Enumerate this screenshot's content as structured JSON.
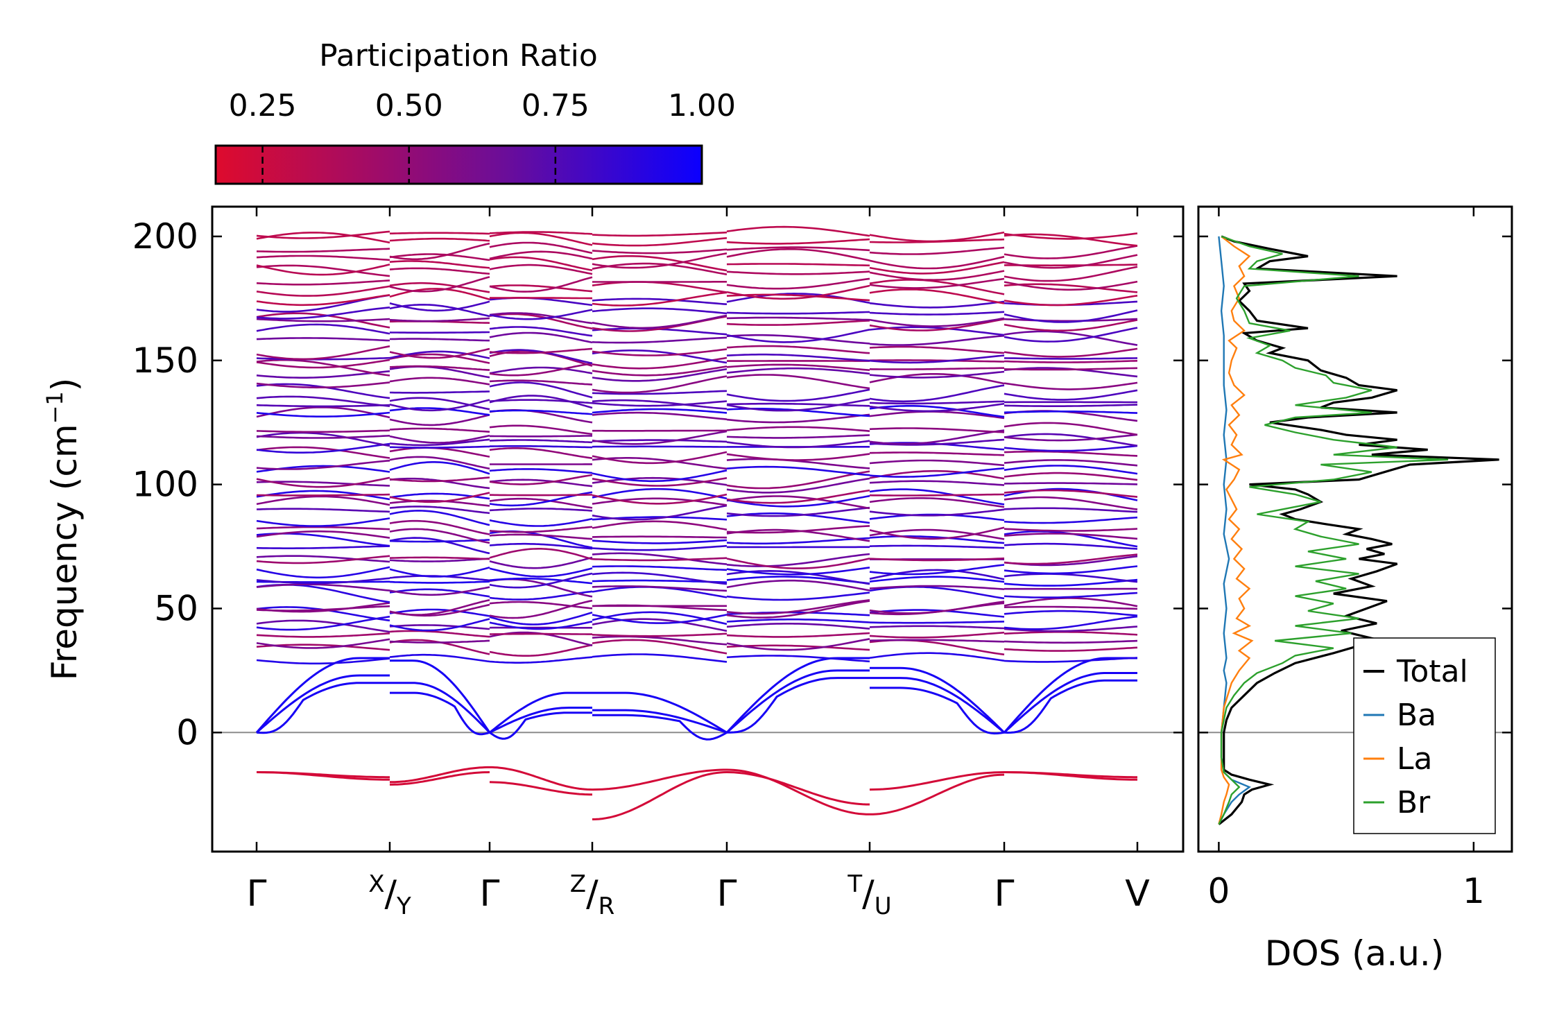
{
  "chart_data": [
    {
      "type": "line",
      "subtype": "phonon-band-structure",
      "ylabel_main": "Frequency (cm",
      "ylabel_sup": "−1",
      "ylabel_close": ")",
      "ylim": [
        -48,
        212
      ],
      "yticks": [
        0,
        50,
        100,
        150,
        200
      ],
      "x_segments": [
        {
          "from": "Γ",
          "to": "X",
          "length": 1.0
        },
        {
          "from": "Y",
          "to": "Γ",
          "length": 0.75
        },
        {
          "from": "Γ",
          "to": "Z",
          "length": 0.77
        },
        {
          "from": "R",
          "to": "Γ",
          "length": 1.0
        },
        {
          "from": "Γ",
          "to": "T",
          "length": 1.07
        },
        {
          "from": "U",
          "to": "Γ",
          "length": 1.02
        },
        {
          "from": "Γ",
          "to": "V",
          "length": 1.0
        }
      ],
      "xticks": [
        {
          "main": "Γ"
        },
        {
          "sup": "X",
          "slash": "/",
          "sub": "Y"
        },
        {
          "main": "Γ"
        },
        {
          "sup": "Z",
          "slash": "/",
          "sub": "R"
        },
        {
          "main": "Γ"
        },
        {
          "sup": "T",
          "slash": "/",
          "sub": "U"
        },
        {
          "main": "Γ"
        },
        {
          "main": "V"
        }
      ],
      "imaginary_branches": [
        {
          "segment_start": [
            -16,
            -21,
            -20,
            -35,
            -16,
            -23,
            -16
          ],
          "segment_end": [
            -19,
            -16,
            -25,
            -16,
            -29,
            -16,
            -19
          ]
        },
        {
          "segment_start": [
            -16,
            -20,
            -14,
            -23,
            -15,
            -33,
            -16
          ],
          "segment_end": [
            -18,
            -14,
            -23,
            -15,
            -33,
            -17,
            -18
          ]
        }
      ],
      "acoustic_branches": "three acoustic branches rising from 0 at each Γ point, reaching roughly 16–30 cm⁻¹ at zone boundaries; some soft dips to about -5 cm⁻¹ near Γ",
      "optical_band_region": {
        "from": 31,
        "to": 200,
        "approx_branch_count": 60
      },
      "zero_line": 0,
      "colorbar": {
        "label": "Participation Ratio",
        "ticks": [
          "0.25",
          "0.50",
          "0.75",
          "1.00"
        ],
        "range": [
          0.17,
          1.0
        ],
        "low_color": "#de0b2d",
        "high_color": "#0b00ff"
      }
    },
    {
      "type": "line",
      "subtype": "density-of-states",
      "xlabel": "DOS (a.u.)",
      "xticks": [
        "0",
        "1"
      ],
      "xlim": [
        -0.08,
        1.15
      ],
      "ylim": [
        -48,
        212
      ],
      "legend_position": "bottom-right",
      "series": [
        {
          "name": "Total",
          "color": "#000000",
          "points": [
            [
              -37,
              0
            ],
            [
              -33,
              0.05
            ],
            [
              -28,
              0.09
            ],
            [
              -25,
              0.1
            ],
            [
              -23,
              0.13
            ],
            [
              -21,
              0.2
            ],
            [
              -19,
              0.12
            ],
            [
              -17,
              0.05
            ],
            [
              -15,
              0.02
            ],
            [
              -10,
              0.02
            ],
            [
              -5,
              0.02
            ],
            [
              0,
              0.02
            ],
            [
              5,
              0.03
            ],
            [
              10,
              0.05
            ],
            [
              15,
              0.1
            ],
            [
              20,
              0.15
            ],
            [
              24,
              0.22
            ],
            [
              28,
              0.3
            ],
            [
              32,
              0.45
            ],
            [
              35,
              0.55
            ],
            [
              38,
              0.6
            ],
            [
              41,
              0.48
            ],
            [
              44,
              0.62
            ],
            [
              47,
              0.5
            ],
            [
              50,
              0.58
            ],
            [
              53,
              0.66
            ],
            [
              56,
              0.45
            ],
            [
              59,
              0.6
            ],
            [
              62,
              0.52
            ],
            [
              65,
              0.62
            ],
            [
              68,
              0.7
            ],
            [
              70,
              0.55
            ],
            [
              72,
              0.65
            ],
            [
              74,
              0.58
            ],
            [
              76,
              0.68
            ],
            [
              78,
              0.6
            ],
            [
              80,
              0.5
            ],
            [
              82,
              0.55
            ],
            [
              84,
              0.42
            ],
            [
              86,
              0.3
            ],
            [
              88,
              0.25
            ],
            [
              90,
              0.32
            ],
            [
              93,
              0.4
            ],
            [
              96,
              0.35
            ],
            [
              98,
              0.3
            ],
            [
              100,
              0.12
            ],
            [
              102,
              0.55
            ],
            [
              105,
              0.65
            ],
            [
              108,
              0.75
            ],
            [
              110,
              1.1
            ],
            [
              112,
              0.6
            ],
            [
              114,
              0.82
            ],
            [
              116,
              0.55
            ],
            [
              118,
              0.7
            ],
            [
              120,
              0.5
            ],
            [
              122,
              0.4
            ],
            [
              125,
              0.2
            ],
            [
              127,
              0.35
            ],
            [
              129,
              0.7
            ],
            [
              131,
              0.4
            ],
            [
              133,
              0.45
            ],
            [
              135,
              0.6
            ],
            [
              138,
              0.7
            ],
            [
              140,
              0.55
            ],
            [
              143,
              0.5
            ],
            [
              146,
              0.4
            ],
            [
              150,
              0.35
            ],
            [
              153,
              0.2
            ],
            [
              155,
              0.25
            ],
            [
              158,
              0.15
            ],
            [
              161,
              0.1
            ],
            [
              163,
              0.35
            ],
            [
              166,
              0.15
            ],
            [
              170,
              0.12
            ],
            [
              174,
              0.08
            ],
            [
              178,
              0.12
            ],
            [
              181,
              0.1
            ],
            [
              184,
              0.7
            ],
            [
              187,
              0.15
            ],
            [
              190,
              0.2
            ],
            [
              192,
              0.35
            ],
            [
              195,
              0.2
            ],
            [
              198,
              0.06
            ],
            [
              200,
              0.01
            ]
          ]
        },
        {
          "name": "Ba",
          "color": "#1f77b4",
          "points": [
            [
              -37,
              0
            ],
            [
              -33,
              0.02
            ],
            [
              -28,
              0.05
            ],
            [
              -25,
              0.08
            ],
            [
              -22,
              0.12
            ],
            [
              -19,
              0.05
            ],
            [
              -16,
              0.02
            ],
            [
              -10,
              0.01
            ],
            [
              0,
              0.01
            ],
            [
              10,
              0.02
            ],
            [
              20,
              0.03
            ],
            [
              25,
              0.02
            ],
            [
              30,
              0.03
            ],
            [
              40,
              0.02
            ],
            [
              50,
              0.03
            ],
            [
              60,
              0.02
            ],
            [
              70,
              0.04
            ],
            [
              80,
              0.02
            ],
            [
              90,
              0.03
            ],
            [
              100,
              0.02
            ],
            [
              110,
              0.03
            ],
            [
              120,
              0.02
            ],
            [
              130,
              0.03
            ],
            [
              140,
              0.02
            ],
            [
              150,
              0.02
            ],
            [
              160,
              0.02
            ],
            [
              170,
              0.01
            ],
            [
              180,
              0.02
            ],
            [
              190,
              0.01
            ],
            [
              200,
              0.0
            ]
          ]
        },
        {
          "name": "La",
          "color": "#ff7f0e",
          "points": [
            [
              -37,
              0
            ],
            [
              -33,
              0.01
            ],
            [
              -28,
              0.02
            ],
            [
              -25,
              0.03
            ],
            [
              -21,
              0.04
            ],
            [
              -18,
              0.02
            ],
            [
              -15,
              0.01
            ],
            [
              0,
              0.01
            ],
            [
              10,
              0.02
            ],
            [
              20,
              0.05
            ],
            [
              25,
              0.08
            ],
            [
              30,
              0.12
            ],
            [
              33,
              0.08
            ],
            [
              37,
              0.13
            ],
            [
              40,
              0.06
            ],
            [
              43,
              0.12
            ],
            [
              46,
              0.07
            ],
            [
              50,
              0.1
            ],
            [
              54,
              0.08
            ],
            [
              58,
              0.12
            ],
            [
              62,
              0.07
            ],
            [
              66,
              0.1
            ],
            [
              70,
              0.06
            ],
            [
              74,
              0.09
            ],
            [
              78,
              0.05
            ],
            [
              82,
              0.08
            ],
            [
              86,
              0.04
            ],
            [
              90,
              0.07
            ],
            [
              94,
              0.05
            ],
            [
              98,
              0.03
            ],
            [
              102,
              0.06
            ],
            [
              106,
              0.08
            ],
            [
              110,
              0.02
            ],
            [
              112,
              0.09
            ],
            [
              116,
              0.05
            ],
            [
              120,
              0.07
            ],
            [
              124,
              0.04
            ],
            [
              128,
              0.08
            ],
            [
              132,
              0.05
            ],
            [
              136,
              0.1
            ],
            [
              140,
              0.06
            ],
            [
              145,
              0.04
            ],
            [
              150,
              0.05
            ],
            [
              155,
              0.07
            ],
            [
              158,
              0.04
            ],
            [
              162,
              0.1
            ],
            [
              166,
              0.06
            ],
            [
              170,
              0.05
            ],
            [
              175,
              0.08
            ],
            [
              180,
              0.06
            ],
            [
              184,
              0.1
            ],
            [
              188,
              0.08
            ],
            [
              192,
              0.12
            ],
            [
              196,
              0.06
            ],
            [
              200,
              0.01
            ]
          ]
        },
        {
          "name": "Br",
          "color": "#2ca02c",
          "points": [
            [
              -37,
              0
            ],
            [
              -33,
              0.02
            ],
            [
              -28,
              0.04
            ],
            [
              -25,
              0.05
            ],
            [
              -22,
              0.08
            ],
            [
              -19,
              0.05
            ],
            [
              -16,
              0.02
            ],
            [
              -10,
              0.01
            ],
            [
              0,
              0.01
            ],
            [
              5,
              0.02
            ],
            [
              10,
              0.03
            ],
            [
              15,
              0.06
            ],
            [
              20,
              0.1
            ],
            [
              24,
              0.15
            ],
            [
              28,
              0.25
            ],
            [
              31,
              0.3
            ],
            [
              34,
              0.45
            ],
            [
              37,
              0.22
            ],
            [
              40,
              0.52
            ],
            [
              43,
              0.3
            ],
            [
              46,
              0.55
            ],
            [
              49,
              0.35
            ],
            [
              52,
              0.45
            ],
            [
              55,
              0.3
            ],
            [
              58,
              0.5
            ],
            [
              61,
              0.38
            ],
            [
              64,
              0.55
            ],
            [
              67,
              0.3
            ],
            [
              70,
              0.5
            ],
            [
              73,
              0.35
            ],
            [
              76,
              0.55
            ],
            [
              79,
              0.4
            ],
            [
              82,
              0.3
            ],
            [
              85,
              0.35
            ],
            [
              88,
              0.15
            ],
            [
              90,
              0.25
            ],
            [
              93,
              0.4
            ],
            [
              96,
              0.3
            ],
            [
              99,
              0.12
            ],
            [
              102,
              0.45
            ],
            [
              105,
              0.6
            ],
            [
              108,
              0.4
            ],
            [
              110,
              0.9
            ],
            [
              112,
              0.45
            ],
            [
              115,
              0.7
            ],
            [
              118,
              0.45
            ],
            [
              121,
              0.3
            ],
            [
              124,
              0.18
            ],
            [
              127,
              0.3
            ],
            [
              129,
              0.6
            ],
            [
              132,
              0.3
            ],
            [
              135,
              0.5
            ],
            [
              138,
              0.6
            ],
            [
              141,
              0.45
            ],
            [
              144,
              0.42
            ],
            [
              147,
              0.3
            ],
            [
              150,
              0.25
            ],
            [
              153,
              0.15
            ],
            [
              156,
              0.2
            ],
            [
              159,
              0.12
            ],
            [
              162,
              0.28
            ],
            [
              165,
              0.12
            ],
            [
              170,
              0.1
            ],
            [
              175,
              0.07
            ],
            [
              180,
              0.1
            ],
            [
              184,
              0.55
            ],
            [
              187,
              0.12
            ],
            [
              190,
              0.15
            ],
            [
              193,
              0.25
            ],
            [
              196,
              0.12
            ],
            [
              200,
              0.01
            ]
          ]
        }
      ]
    }
  ]
}
